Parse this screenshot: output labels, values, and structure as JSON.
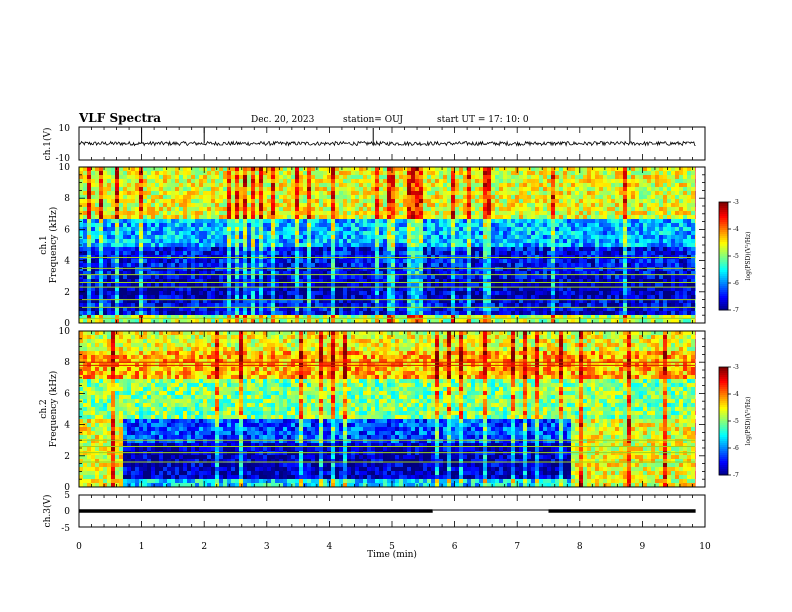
{
  "header": {
    "title": "VLF Spectra",
    "date": "Dec. 20, 2023",
    "station": "station= OUJ",
    "start": "start  UT  =   17: 10: 0"
  },
  "chart_data": [
    {
      "type": "line",
      "name": "ch1-waveform",
      "ylabel": "ch.1(V)",
      "ylim": [
        -10,
        10
      ],
      "yticks": [
        "10",
        "-10"
      ],
      "xlim": [
        0,
        10
      ],
      "baseline": 0,
      "noise_amplitude": 1.2,
      "spike_times": [
        1.0,
        2.0,
        4.7,
        8.8
      ]
    },
    {
      "type": "heatmap",
      "name": "ch1-spectrogram",
      "ylabel": "ch.1\nFrequency (kHz)",
      "ylim": [
        0,
        10
      ],
      "yticks": [
        "0",
        "2",
        "4",
        "6",
        "8",
        "10"
      ],
      "xlim": [
        0,
        10
      ],
      "colorbar": {
        "label": "log(PSD)(V²/Hz)",
        "range": [
          -7,
          -3
        ],
        "ticks": [
          "-3",
          "-4",
          "-5",
          "-6",
          "-7"
        ]
      },
      "bands": [
        {
          "fmin": 0.0,
          "fmax": 0.5,
          "level": -4.8
        },
        {
          "fmin": 0.5,
          "fmax": 1.6,
          "level": -6.6
        },
        {
          "fmin": 1.6,
          "fmax": 2.8,
          "level": -6.8
        },
        {
          "fmin": 2.8,
          "fmax": 3.6,
          "level": -6.6
        },
        {
          "fmin": 3.6,
          "fmax": 5.0,
          "level": -6.5
        },
        {
          "fmin": 5.0,
          "fmax": 6.6,
          "level": -5.8
        },
        {
          "fmin": 6.6,
          "fmax": 10.0,
          "level": -4.6
        }
      ],
      "lines_khz": [
        0.3,
        1.0,
        1.5,
        2.3,
        2.6,
        3.1,
        3.5,
        4.2
      ]
    },
    {
      "type": "heatmap",
      "name": "ch2-spectrogram",
      "ylabel": "ch.2\nFrequency (kHz)",
      "ylim": [
        0,
        10
      ],
      "yticks": [
        "0",
        "2",
        "4",
        "6",
        "8",
        "10"
      ],
      "xlim": [
        0,
        10
      ],
      "colorbar": {
        "label": "log(PSD)(V²/Hz)",
        "range": [
          -7,
          -3
        ],
        "ticks": [
          "-3",
          "-4",
          "-5",
          "-6",
          "-7"
        ]
      },
      "bands": [
        {
          "fmin": 0.0,
          "fmax": 0.4,
          "level": -5.6
        },
        {
          "fmin": 0.4,
          "fmax": 2.9,
          "level": -6.8
        },
        {
          "fmin": 2.9,
          "fmax": 4.4,
          "level": -6.2
        },
        {
          "fmin": 4.4,
          "fmax": 6.8,
          "level": -5.0
        },
        {
          "fmin": 6.8,
          "fmax": 8.6,
          "level": -4.2
        },
        {
          "fmin": 8.6,
          "fmax": 10.0,
          "level": -4.6
        }
      ],
      "quiet_interval_min": [
        0.7,
        7.8
      ],
      "outside_level": -4.6,
      "lines_khz": [
        7.8,
        8.0,
        2.2,
        2.6,
        3.0,
        1.6
      ]
    },
    {
      "type": "line",
      "name": "ch3-signal",
      "ylabel": "ch.3(V)",
      "ylim": [
        -5,
        5
      ],
      "yticks": [
        "5",
        "0",
        "-5"
      ],
      "xlim": [
        0,
        10
      ],
      "segments": [
        {
          "t0": 0.0,
          "t1": 5.65,
          "value": 0.0
        },
        {
          "t0": 5.65,
          "t1": 7.5,
          "value": 0.3
        },
        {
          "t0": 7.5,
          "t1": 9.85,
          "value": 0.0
        }
      ]
    }
  ],
  "xaxis": {
    "label": "Time  (min)",
    "ticks": [
      "0",
      "1",
      "2",
      "3",
      "4",
      "5",
      "6",
      "7",
      "8",
      "9",
      "10"
    ]
  }
}
